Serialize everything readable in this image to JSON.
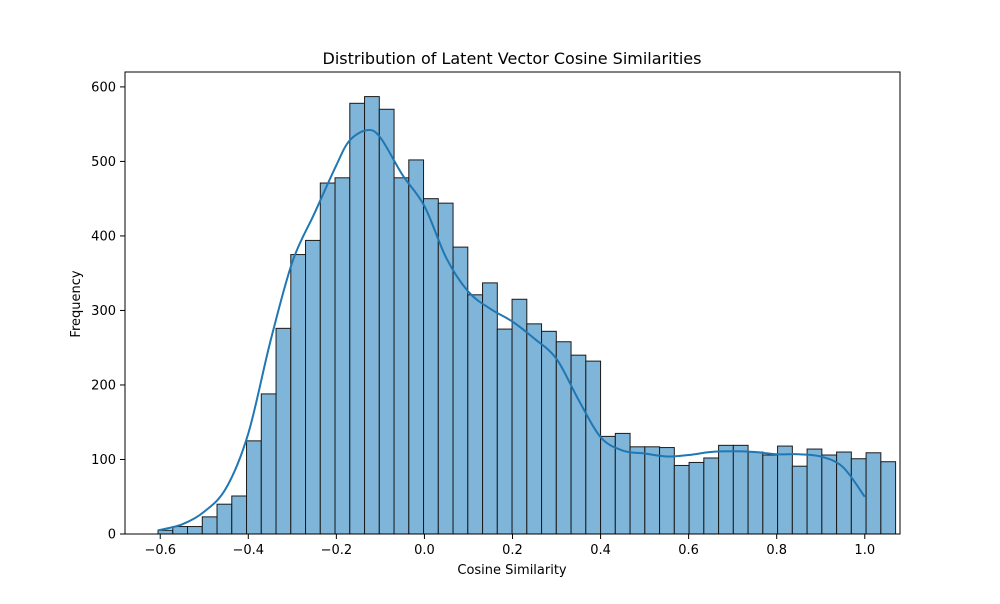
{
  "chart_data": {
    "type": "bar",
    "subtype": "histogram-with-kde",
    "title": "Distribution of Latent Vector Cosine Similarities",
    "xlabel": "Cosine Similarity",
    "ylabel": "Frequency",
    "xlim": [
      -0.68,
      1.08
    ],
    "ylim": [
      0,
      620
    ],
    "xticks": [
      -0.6,
      -0.4,
      -0.2,
      0.0,
      0.2,
      0.4,
      0.6,
      0.8,
      1.0
    ],
    "xtick_labels": [
      "−0.6",
      "−0.4",
      "−0.2",
      "0.0",
      "0.2",
      "0.4",
      "0.6",
      "0.8",
      "1.0"
    ],
    "yticks": [
      0,
      100,
      200,
      300,
      400,
      500,
      600
    ],
    "ytick_labels": [
      "0",
      "100",
      "200",
      "300",
      "400",
      "500",
      "600"
    ],
    "grid": false,
    "bin_start": -0.605,
    "bin_width": 0.0335,
    "values": [
      5,
      10,
      10,
      23,
      40,
      51,
      125,
      188,
      276,
      375,
      394,
      471,
      478,
      578,
      587,
      570,
      478,
      502,
      450,
      444,
      385,
      321,
      337,
      275,
      315,
      282,
      272,
      258,
      240,
      232,
      131,
      135,
      117,
      117,
      116,
      92,
      96,
      102,
      119,
      119,
      110,
      106,
      118,
      91,
      114,
      106,
      110,
      101,
      109,
      97
    ],
    "kde": {
      "x": [
        -0.605,
        -0.55,
        -0.5,
        -0.45,
        -0.4,
        -0.35,
        -0.3,
        -0.25,
        -0.2,
        -0.17,
        -0.13,
        -0.1,
        -0.05,
        0.0,
        0.05,
        0.1,
        0.15,
        0.2,
        0.25,
        0.3,
        0.35,
        0.4,
        0.45,
        0.5,
        0.55,
        0.6,
        0.65,
        0.7,
        0.75,
        0.8,
        0.85,
        0.9,
        0.95,
        1.0
      ],
      "y": [
        5,
        13,
        30,
        62,
        135,
        258,
        365,
        430,
        495,
        528,
        542,
        532,
        482,
        440,
        370,
        325,
        302,
        285,
        262,
        235,
        180,
        130,
        112,
        108,
        104,
        106,
        110,
        111,
        110,
        107,
        107,
        104,
        90,
        50
      ]
    },
    "colors": {
      "bar_fill": "#7fb5d8",
      "bar_edge": "#1a1a1a",
      "kde_line": "#1f77b4"
    }
  }
}
